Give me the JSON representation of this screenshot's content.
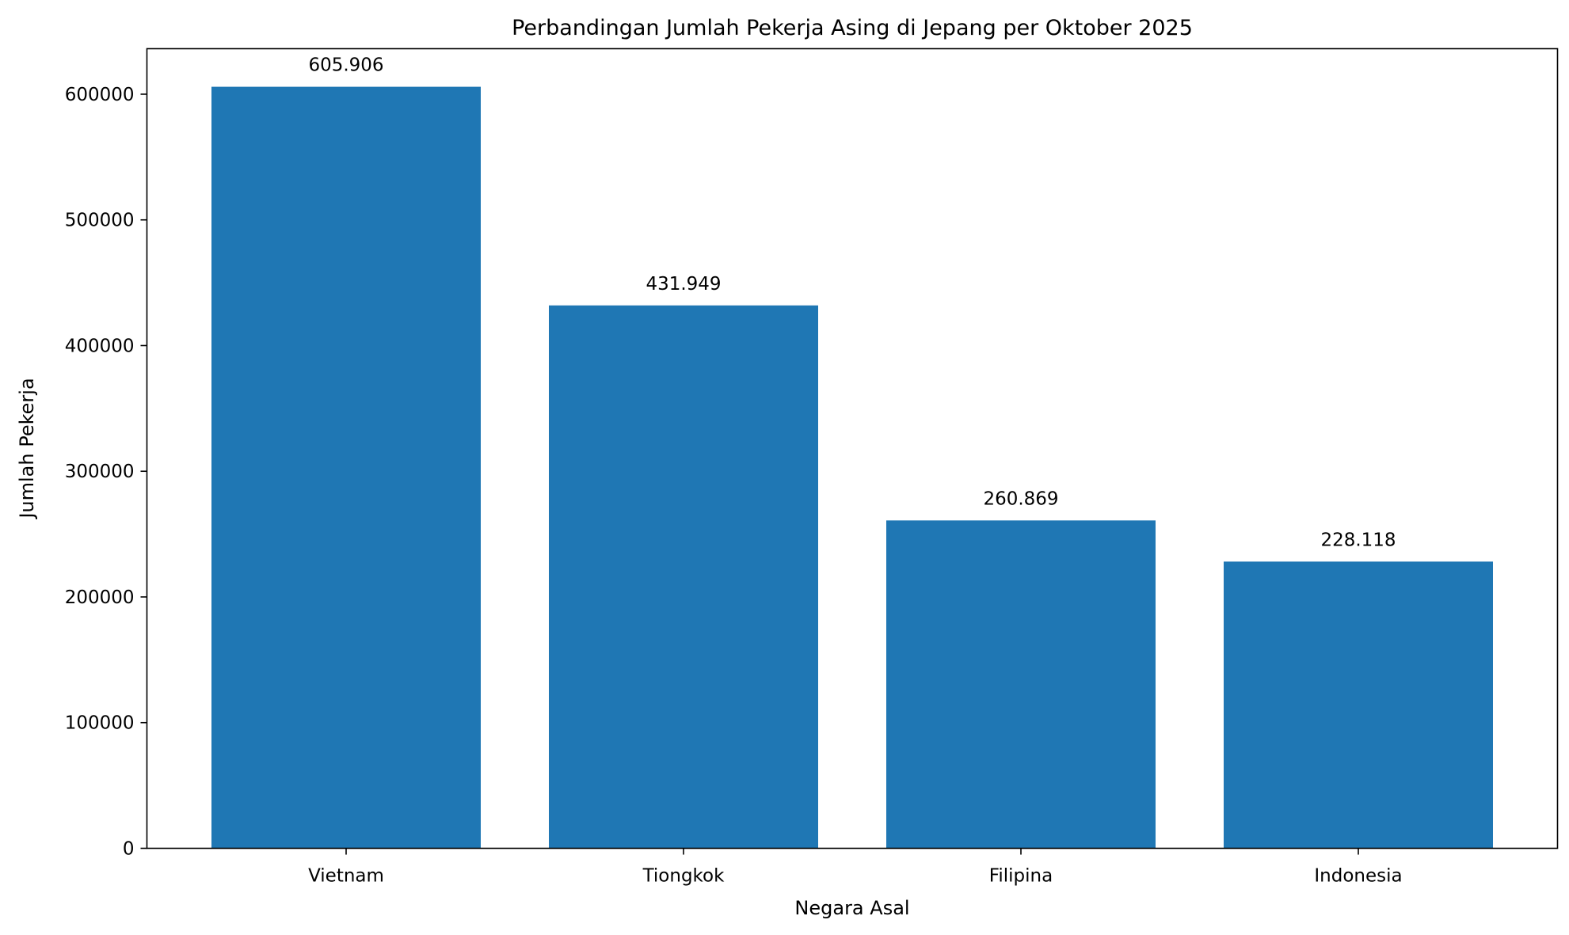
{
  "chart_data": {
    "type": "bar",
    "title": "Perbandingan Jumlah Pekerja Asing di Jepang per Oktober 2025",
    "xlabel": "Negara Asal",
    "ylabel": "Jumlah Pekerja",
    "categories": [
      "Vietnam",
      "Tiongkok",
      "Filipina",
      "Indonesia"
    ],
    "values": [
      605906,
      431949,
      260869,
      228118
    ],
    "data_labels": [
      "605.906",
      "431.949",
      "260.869",
      "228.118"
    ],
    "ylim": [
      0,
      636201
    ],
    "yticks": [
      0,
      100000,
      200000,
      300000,
      400000,
      500000,
      600000
    ],
    "ytick_labels": [
      "0",
      "100000",
      "200000",
      "300000",
      "400000",
      "500000",
      "600000"
    ],
    "grid": false,
    "legend": "none",
    "bar_color": "#1f77b4"
  }
}
